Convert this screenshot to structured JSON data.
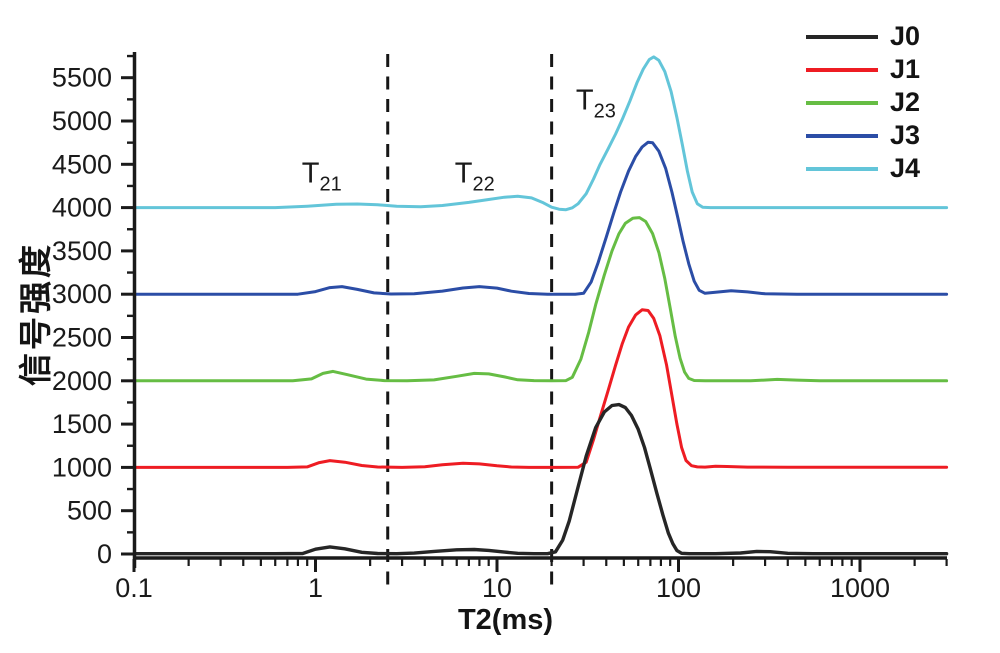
{
  "chart_data": {
    "type": "line",
    "title": "",
    "xlabel": "T2(ms)",
    "ylabel": "信号强度",
    "x_scale": "log",
    "x_range_ms": [
      0.1,
      3000
    ],
    "y_range": [
      0,
      5800
    ],
    "grid": false,
    "legend_position": "top-right",
    "axis_color": "#1a1a1a",
    "boundary_line_color": "#161616",
    "boundary_lines_ms": [
      2.5,
      20
    ],
    "x_major_ticks_ms": [
      0.1,
      1,
      10,
      100,
      1000
    ],
    "x_tick_labels": [
      "0.1",
      "1",
      "10",
      "100",
      "1000"
    ],
    "y_major_tick_step": 500,
    "y_minor_tick_step": 250,
    "y_tick_labels": [
      "0",
      "500",
      "1000",
      "1500",
      "2000",
      "2500",
      "3000",
      "3500",
      "4000",
      "4500",
      "5000",
      "5500"
    ],
    "region_labels": [
      {
        "main": "T",
        "sub": "21",
        "x_ms": 0.84,
        "y_val": 4290
      },
      {
        "main": "T",
        "sub": "22",
        "x_ms": 5.85,
        "y_val": 4290
      },
      {
        "main": "T",
        "sub": "23",
        "x_ms": 27.2,
        "y_val": 5130
      }
    ],
    "series": [
      {
        "name": "J0",
        "color": "#262626",
        "baseline_offset": 0,
        "points": [
          [
            0.1,
            3
          ],
          [
            0.6,
            3
          ],
          [
            0.85,
            6
          ],
          [
            1,
            55
          ],
          [
            1.2,
            82
          ],
          [
            1.45,
            60
          ],
          [
            1.8,
            20
          ],
          [
            2.2,
            6
          ],
          [
            2.8,
            4
          ],
          [
            3.5,
            10
          ],
          [
            4.5,
            30
          ],
          [
            6,
            48
          ],
          [
            7.5,
            52
          ],
          [
            9,
            42
          ],
          [
            11,
            22
          ],
          [
            13,
            8
          ],
          [
            16,
            4
          ],
          [
            19,
            4
          ],
          [
            21,
            25
          ],
          [
            23,
            160
          ],
          [
            25,
            380
          ],
          [
            28,
            780
          ],
          [
            31,
            1130
          ],
          [
            35,
            1460
          ],
          [
            39,
            1640
          ],
          [
            43,
            1715
          ],
          [
            47,
            1725
          ],
          [
            51,
            1690
          ],
          [
            55,
            1600
          ],
          [
            60,
            1440
          ],
          [
            65,
            1230
          ],
          [
            70,
            980
          ],
          [
            76,
            700
          ],
          [
            82,
            450
          ],
          [
            88,
            240
          ],
          [
            93,
            120
          ],
          [
            98,
            40
          ],
          [
            104,
            8
          ],
          [
            115,
            3
          ],
          [
            160,
            3
          ],
          [
            220,
            12
          ],
          [
            270,
            30
          ],
          [
            320,
            26
          ],
          [
            400,
            8
          ],
          [
            550,
            3
          ],
          [
            1200,
            3
          ],
          [
            3000,
            3
          ]
        ]
      },
      {
        "name": "J1",
        "color": "#ee1c23",
        "baseline_offset": 1000,
        "points": [
          [
            0.1,
            1000
          ],
          [
            0.7,
            1000
          ],
          [
            0.9,
            1006
          ],
          [
            1.05,
            1055
          ],
          [
            1.2,
            1078
          ],
          [
            1.45,
            1060
          ],
          [
            1.8,
            1022
          ],
          [
            2.2,
            1005
          ],
          [
            3,
            1000
          ],
          [
            4,
            1008
          ],
          [
            5,
            1030
          ],
          [
            6.5,
            1048
          ],
          [
            8,
            1040
          ],
          [
            10,
            1018
          ],
          [
            12,
            1005
          ],
          [
            15,
            1000
          ],
          [
            22,
            1000
          ],
          [
            28,
            1002
          ],
          [
            31,
            1060
          ],
          [
            34,
            1320
          ],
          [
            37,
            1580
          ],
          [
            41,
            1890
          ],
          [
            45,
            2180
          ],
          [
            49,
            2430
          ],
          [
            53,
            2620
          ],
          [
            58,
            2760
          ],
          [
            63,
            2820
          ],
          [
            68,
            2812
          ],
          [
            73,
            2720
          ],
          [
            79,
            2520
          ],
          [
            86,
            2180
          ],
          [
            92,
            1830
          ],
          [
            98,
            1500
          ],
          [
            104,
            1230
          ],
          [
            110,
            1080
          ],
          [
            118,
            1020
          ],
          [
            127,
            1006
          ],
          [
            140,
            1004
          ],
          [
            160,
            1014
          ],
          [
            185,
            1010
          ],
          [
            240,
            1004
          ],
          [
            400,
            1002
          ],
          [
            1000,
            1002
          ],
          [
            3000,
            1002
          ]
        ]
      },
      {
        "name": "J2",
        "color": "#66bd44",
        "baseline_offset": 2000,
        "points": [
          [
            0.1,
            2000
          ],
          [
            0.75,
            2000
          ],
          [
            0.95,
            2022
          ],
          [
            1.1,
            2086
          ],
          [
            1.25,
            2108
          ],
          [
            1.5,
            2070
          ],
          [
            1.9,
            2020
          ],
          [
            2.4,
            2002
          ],
          [
            3.2,
            2000
          ],
          [
            4.5,
            2010
          ],
          [
            6,
            2052
          ],
          [
            7.5,
            2086
          ],
          [
            9,
            2080
          ],
          [
            11,
            2045
          ],
          [
            13,
            2012
          ],
          [
            16,
            2002
          ],
          [
            20,
            2000
          ],
          [
            24,
            2002
          ],
          [
            26,
            2040
          ],
          [
            29,
            2250
          ],
          [
            32,
            2560
          ],
          [
            35,
            2880
          ],
          [
            39,
            3220
          ],
          [
            43,
            3500
          ],
          [
            47,
            3700
          ],
          [
            51,
            3820
          ],
          [
            56,
            3878
          ],
          [
            61,
            3885
          ],
          [
            66,
            3840
          ],
          [
            72,
            3700
          ],
          [
            78,
            3480
          ],
          [
            84,
            3180
          ],
          [
            90,
            2840
          ],
          [
            96,
            2510
          ],
          [
            102,
            2260
          ],
          [
            108,
            2100
          ],
          [
            114,
            2028
          ],
          [
            122,
            2004
          ],
          [
            140,
            2000
          ],
          [
            250,
            2000
          ],
          [
            350,
            2016
          ],
          [
            450,
            2008
          ],
          [
            600,
            2000
          ],
          [
            3000,
            2000
          ]
        ]
      },
      {
        "name": "J3",
        "color": "#2b4da6",
        "baseline_offset": 3000,
        "points": [
          [
            0.1,
            3000
          ],
          [
            0.8,
            3000
          ],
          [
            1,
            3030
          ],
          [
            1.2,
            3076
          ],
          [
            1.4,
            3088
          ],
          [
            1.7,
            3055
          ],
          [
            2.1,
            3015
          ],
          [
            2.6,
            3002
          ],
          [
            3.5,
            3006
          ],
          [
            5,
            3036
          ],
          [
            6.5,
            3072
          ],
          [
            8,
            3088
          ],
          [
            10,
            3070
          ],
          [
            12,
            3035
          ],
          [
            15,
            3008
          ],
          [
            19,
            3000
          ],
          [
            27,
            3000
          ],
          [
            30,
            3010
          ],
          [
            33,
            3140
          ],
          [
            36,
            3360
          ],
          [
            40,
            3660
          ],
          [
            44,
            3940
          ],
          [
            48,
            4180
          ],
          [
            53,
            4420
          ],
          [
            58,
            4590
          ],
          [
            63,
            4700
          ],
          [
            68,
            4755
          ],
          [
            72,
            4750
          ],
          [
            78,
            4650
          ],
          [
            85,
            4450
          ],
          [
            92,
            4180
          ],
          [
            99,
            3890
          ],
          [
            106,
            3610
          ],
          [
            114,
            3350
          ],
          [
            122,
            3150
          ],
          [
            130,
            3045
          ],
          [
            140,
            3010
          ],
          [
            160,
            3022
          ],
          [
            195,
            3040
          ],
          [
            240,
            3026
          ],
          [
            300,
            3005
          ],
          [
            450,
            3000
          ],
          [
            1200,
            3000
          ],
          [
            3000,
            3000
          ]
        ]
      },
      {
        "name": "J4",
        "color": "#63c5d9",
        "baseline_offset": 4000,
        "points": [
          [
            0.1,
            4000
          ],
          [
            0.6,
            4000
          ],
          [
            0.9,
            4016
          ],
          [
            1.3,
            4038
          ],
          [
            1.7,
            4042
          ],
          [
            2.2,
            4032
          ],
          [
            2.8,
            4016
          ],
          [
            3.8,
            4010
          ],
          [
            5,
            4024
          ],
          [
            7,
            4060
          ],
          [
            9,
            4094
          ],
          [
            11,
            4120
          ],
          [
            13,
            4130
          ],
          [
            15.5,
            4112
          ],
          [
            18,
            4055
          ],
          [
            20,
            4005
          ],
          [
            22,
            3982
          ],
          [
            24,
            3976
          ],
          [
            26,
            3998
          ],
          [
            28,
            4045
          ],
          [
            31,
            4160
          ],
          [
            34,
            4330
          ],
          [
            37,
            4500
          ],
          [
            41,
            4680
          ],
          [
            45,
            4850
          ],
          [
            49,
            5020
          ],
          [
            54,
            5230
          ],
          [
            59,
            5440
          ],
          [
            64,
            5600
          ],
          [
            69,
            5710
          ],
          [
            73,
            5740
          ],
          [
            78,
            5700
          ],
          [
            84,
            5570
          ],
          [
            91,
            5340
          ],
          [
            98,
            5040
          ],
          [
            105,
            4730
          ],
          [
            112,
            4420
          ],
          [
            119,
            4180
          ],
          [
            127,
            4045
          ],
          [
            136,
            4004
          ],
          [
            150,
            4000
          ],
          [
            300,
            4000
          ],
          [
            1000,
            4000
          ],
          [
            3000,
            4000
          ]
        ]
      }
    ]
  }
}
